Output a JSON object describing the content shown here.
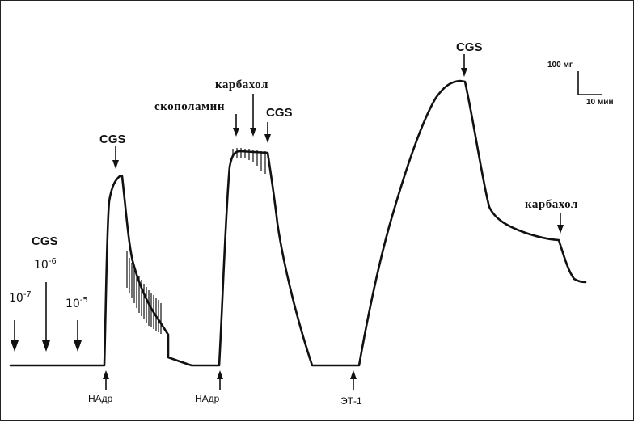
{
  "chart_data": {
    "type": "line",
    "title": "",
    "xlabel": "",
    "ylabel": "",
    "grid": false,
    "legend": "none",
    "scale_bar": {
      "vertical_label": "100 мг",
      "horizontal_label": "10 мин"
    },
    "annotations_above": [
      {
        "id": "cgs-main",
        "text": "CGS"
      },
      {
        "id": "conc-7",
        "text": "10",
        "exp": "-7"
      },
      {
        "id": "conc-6",
        "text": "10",
        "exp": "-6"
      },
      {
        "id": "conc-5",
        "text": "10",
        "exp": "-5"
      },
      {
        "id": "cgs-1",
        "text": "CGS"
      },
      {
        "id": "scopolamine",
        "text": "скополамин"
      },
      {
        "id": "carbachol-1",
        "text": "карбахол"
      },
      {
        "id": "cgs-2",
        "text": "CGS"
      },
      {
        "id": "cgs-3",
        "text": "CGS"
      },
      {
        "id": "carbachol-2",
        "text": "карбахол"
      }
    ],
    "annotations_below": [
      {
        "id": "nadr-1",
        "text": "НАдр"
      },
      {
        "id": "nadr-2",
        "text": "НАдр"
      },
      {
        "id": "et1",
        "text": "ЭТ-1"
      }
    ]
  }
}
